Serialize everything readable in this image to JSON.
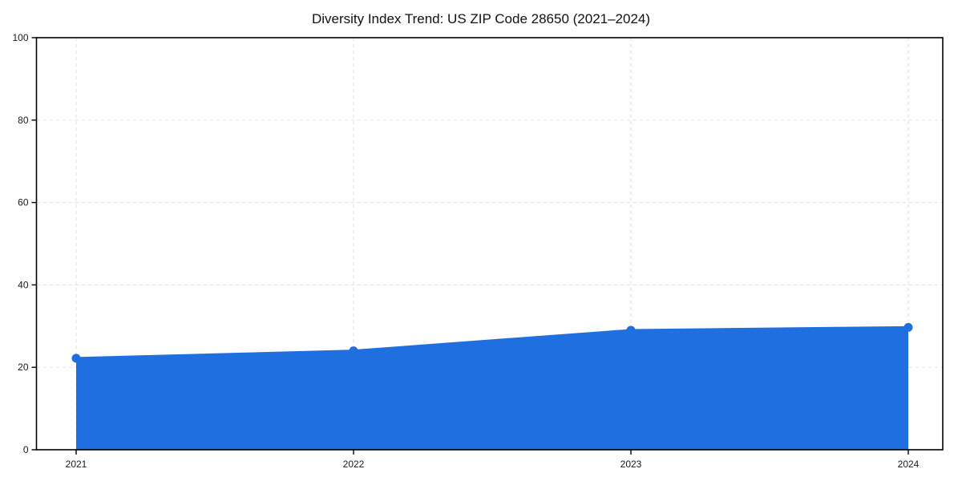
{
  "chart_data": {
    "type": "line",
    "title": "Diversity Index Trend: US ZIP Code 28650 (2021–2024)",
    "x": [
      2021,
      2022,
      2023,
      2024
    ],
    "series": [
      {
        "name": "Diversity Index",
        "values": [
          22.2,
          24.0,
          29.0,
          29.7
        ]
      }
    ],
    "xlabel": "",
    "ylabel": "",
    "ylim": [
      0,
      100
    ],
    "yticks": [
      0,
      20,
      40,
      60,
      80,
      100
    ],
    "xtick_labels": [
      "2021",
      "2022",
      "2023",
      "2024"
    ],
    "grid": "dashed both",
    "legend_position": "none",
    "colors": {
      "line": "#1f6fe0",
      "marker": "#1f6fe0",
      "fill": "#1f6fe0",
      "fill_opacity": 0.1,
      "grid": "#e2e2e2",
      "spine": "#000000",
      "tick_text": "#1a1a1a",
      "background": "#ffffff"
    },
    "marker_style": "filled-circle"
  }
}
